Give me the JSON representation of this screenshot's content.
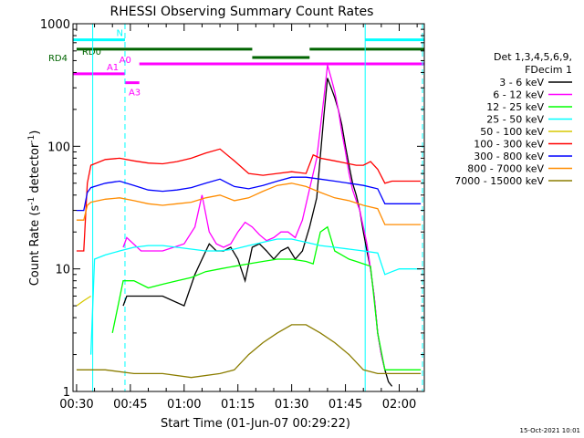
{
  "chart_data": {
    "type": "line",
    "title": "RHESSI Observing Summary Count Rates",
    "xlabel": "Start Time (01-Jun-07 00:29:22)",
    "ylabel": "Count Rate (s⁻¹ detector⁻¹)",
    "ylabel_plain": "Count Rate (s",
    "ylabel_sup1": "-1",
    "ylabel_mid": " detector",
    "ylabel_sup2": "-1",
    "ylabel_end": ")",
    "yscale": "log",
    "ylim": [
      1,
      1000
    ],
    "x_minutes_range": [
      -1.0,
      97.0
    ],
    "x_ticks": [
      {
        "label": "00:30",
        "min": 0
      },
      {
        "label": "00:45",
        "min": 15
      },
      {
        "label": "01:00",
        "min": 30
      },
      {
        "label": "01:15",
        "min": 45
      },
      {
        "label": "01:30",
        "min": 60
      },
      {
        "label": "01:45",
        "min": 75
      },
      {
        "label": "02:00",
        "min": 90
      }
    ],
    "y_ticks": [
      {
        "label": "1",
        "value": 1
      },
      {
        "label": "10",
        "value": 10
      },
      {
        "label": "100",
        "value": 100
      },
      {
        "label": "1000",
        "value": 1000
      }
    ],
    "legend_header": [
      "Det 1,3,4,5,6,9,",
      "FDecim 1"
    ],
    "series": [
      {
        "name": "3 - 6 keV",
        "color": "#000000",
        "x": [
          13,
          14,
          18,
          24,
          30,
          33,
          35,
          37,
          39,
          41,
          43,
          45,
          47,
          49,
          51,
          53,
          55,
          57,
          59,
          61,
          63,
          65,
          67,
          69,
          70,
          71,
          72,
          73,
          74,
          75,
          76,
          77,
          78,
          79,
          80,
          81,
          82,
          83,
          84,
          85,
          86,
          87,
          88
        ],
        "y": [
          5,
          6,
          6,
          6,
          5,
          9,
          12,
          16,
          14,
          14,
          15,
          12,
          8,
          15,
          16,
          14,
          12,
          14,
          15,
          12,
          14,
          22,
          38,
          180,
          360,
          300,
          250,
          200,
          150,
          100,
          70,
          50,
          40,
          30,
          20,
          14,
          10,
          6,
          3,
          2,
          1.5,
          1.2,
          1.1
        ]
      },
      {
        "name": "6 - 12 keV",
        "color": "#ff00ff",
        "x": [
          13,
          14,
          18,
          24,
          30,
          33,
          35,
          37,
          39,
          41,
          43,
          45,
          47,
          49,
          51,
          53,
          55,
          57,
          59,
          61,
          63,
          65,
          67,
          69,
          70,
          71,
          72,
          73,
          74,
          75,
          76,
          77,
          78,
          79,
          80,
          81,
          82,
          83,
          84,
          85,
          86
        ],
        "y": [
          15,
          18,
          14,
          14,
          16,
          22,
          40,
          20,
          16,
          15,
          16,
          20,
          24,
          22,
          19,
          17,
          18,
          20,
          20,
          18,
          25,
          45,
          80,
          250,
          460,
          360,
          280,
          200,
          130,
          90,
          60,
          44,
          36,
          30,
          22,
          16,
          10,
          6,
          3,
          2,
          1.5
        ]
      },
      {
        "name": "12 - 25 keV",
        "color": "#00ff00",
        "x": [
          10,
          13,
          16,
          20,
          24,
          28,
          32,
          36,
          40,
          44,
          48,
          52,
          56,
          60,
          64,
          66,
          68,
          70,
          72,
          74,
          76,
          78,
          80,
          82,
          84,
          86,
          88,
          90,
          92,
          94,
          96
        ],
        "y": [
          3,
          8,
          8,
          7,
          7.5,
          8,
          8.5,
          9.5,
          10,
          10.5,
          11,
          11.5,
          12,
          12,
          11.5,
          11,
          20,
          22,
          14,
          13,
          12,
          11.5,
          11,
          10.5,
          3,
          1.5,
          1.5,
          1.5,
          1.5,
          1.5,
          1.5
        ]
      },
      {
        "name": "25 - 50 keV",
        "color": "#00ffff",
        "x": [
          4,
          5,
          8,
          12,
          16,
          20,
          24,
          28,
          32,
          36,
          40,
          44,
          48,
          52,
          56,
          60,
          64,
          68,
          72,
          76,
          80,
          84,
          86,
          88,
          90,
          92,
          94,
          96
        ],
        "y": [
          2,
          12,
          13,
          14,
          15,
          15.5,
          15.5,
          15,
          14.5,
          14,
          14,
          14.5,
          15.5,
          16.5,
          17.5,
          17.5,
          16.5,
          15.5,
          15,
          14.5,
          14,
          13.5,
          9,
          9.5,
          10,
          10,
          10,
          10
        ]
      },
      {
        "name": "50 - 100 keV",
        "color": "#d7c800",
        "x": [
          0,
          2,
          4
        ],
        "y": [
          5,
          5.5,
          6
        ]
      },
      {
        "name": "100 - 300 keV",
        "color": "#ff0000",
        "x": [
          0,
          2,
          3,
          4,
          8,
          12,
          16,
          20,
          24,
          28,
          32,
          36,
          40,
          44,
          48,
          52,
          56,
          60,
          64,
          66,
          68,
          70,
          72,
          74,
          76,
          78,
          80,
          82,
          84,
          86,
          88,
          90,
          92,
          94,
          96
        ],
        "y": [
          14,
          14,
          50,
          70,
          78,
          80,
          76,
          73,
          72,
          75,
          80,
          88,
          95,
          76,
          60,
          58,
          60,
          62,
          60,
          85,
          80,
          78,
          76,
          74,
          72,
          70,
          70,
          75,
          65,
          50,
          52,
          52,
          52,
          52,
          52
        ]
      },
      {
        "name": "300 - 800 keV",
        "color": "#0000ff",
        "x": [
          0,
          2,
          3,
          4,
          8,
          12,
          16,
          20,
          24,
          28,
          32,
          36,
          40,
          44,
          48,
          52,
          56,
          60,
          64,
          68,
          72,
          76,
          80,
          84,
          86,
          88,
          90,
          92,
          94,
          96
        ],
        "y": [
          30,
          30,
          42,
          46,
          50,
          52,
          48,
          44,
          43,
          44,
          46,
          50,
          54,
          47,
          45,
          48,
          52,
          56,
          56,
          54,
          52,
          50,
          48,
          45,
          34,
          34,
          34,
          34,
          34,
          34
        ]
      },
      {
        "name": "800 - 7000 keV",
        "color": "#ff8c00",
        "x": [
          0,
          2,
          3,
          4,
          8,
          12,
          16,
          20,
          24,
          28,
          32,
          36,
          40,
          44,
          48,
          52,
          56,
          60,
          64,
          68,
          72,
          76,
          80,
          84,
          86,
          88,
          90,
          92,
          94,
          96
        ],
        "y": [
          25,
          25,
          33,
          35,
          37,
          38,
          36,
          34,
          33,
          34,
          35,
          38,
          40,
          36,
          38,
          43,
          48,
          50,
          47,
          42,
          38,
          36,
          33,
          31,
          23,
          23,
          23,
          23,
          23,
          23
        ]
      },
      {
        "name": "7000 - 15000 keV",
        "color": "#8b7d00",
        "x": [
          0,
          8,
          16,
          24,
          32,
          40,
          44,
          48,
          52,
          56,
          60,
          64,
          68,
          72,
          76,
          80,
          84,
          88,
          92,
          96
        ],
        "y": [
          1.5,
          1.5,
          1.4,
          1.4,
          1.3,
          1.4,
          1.5,
          2.0,
          2.5,
          3.0,
          3.5,
          3.5,
          3.0,
          2.5,
          2.0,
          1.5,
          1.4,
          1.4,
          1.4,
          1.4
        ]
      }
    ],
    "state_bars": [
      {
        "label": "RD0",
        "color": "#006400",
        "value": 620,
        "label_side": "inside-left",
        "segments": [
          [
            0,
            49
          ],
          [
            65,
            97
          ]
        ]
      },
      {
        "label": "RD4",
        "color": "#006400",
        "value": 530,
        "label_side": "left-outside",
        "segments": [
          [
            49,
            65
          ]
        ]
      },
      {
        "label": "N",
        "color": "#00ffff",
        "value": 740,
        "label_side": "inside-right",
        "segments": [
          [
            -1,
            13.5
          ],
          [
            80.5,
            97
          ]
        ]
      },
      {
        "label": "A0",
        "color": "#ff00ff",
        "value": 470,
        "label_side": "inside-left",
        "segments": [
          [
            17.5,
            97
          ]
        ]
      },
      {
        "label": "A1",
        "color": "#ff00ff",
        "value": 390,
        "label_side": "inside-left",
        "segments": [
          [
            -1,
            13.5
          ]
        ]
      },
      {
        "label": "A3",
        "color": "#ff00ff",
        "value": 330,
        "label_side": "below",
        "segments": [
          [
            13.5,
            17.5
          ]
        ]
      }
    ],
    "cyan_verticals": [
      {
        "min": 4.5,
        "dashed": false
      },
      {
        "min": 13.5,
        "dashed": true
      },
      {
        "min": 80.5,
        "dashed": false
      },
      {
        "min": 96.5,
        "dashed": true
      }
    ]
  },
  "footer": {
    "timestamp": "15-Oct-2021 10:01"
  }
}
